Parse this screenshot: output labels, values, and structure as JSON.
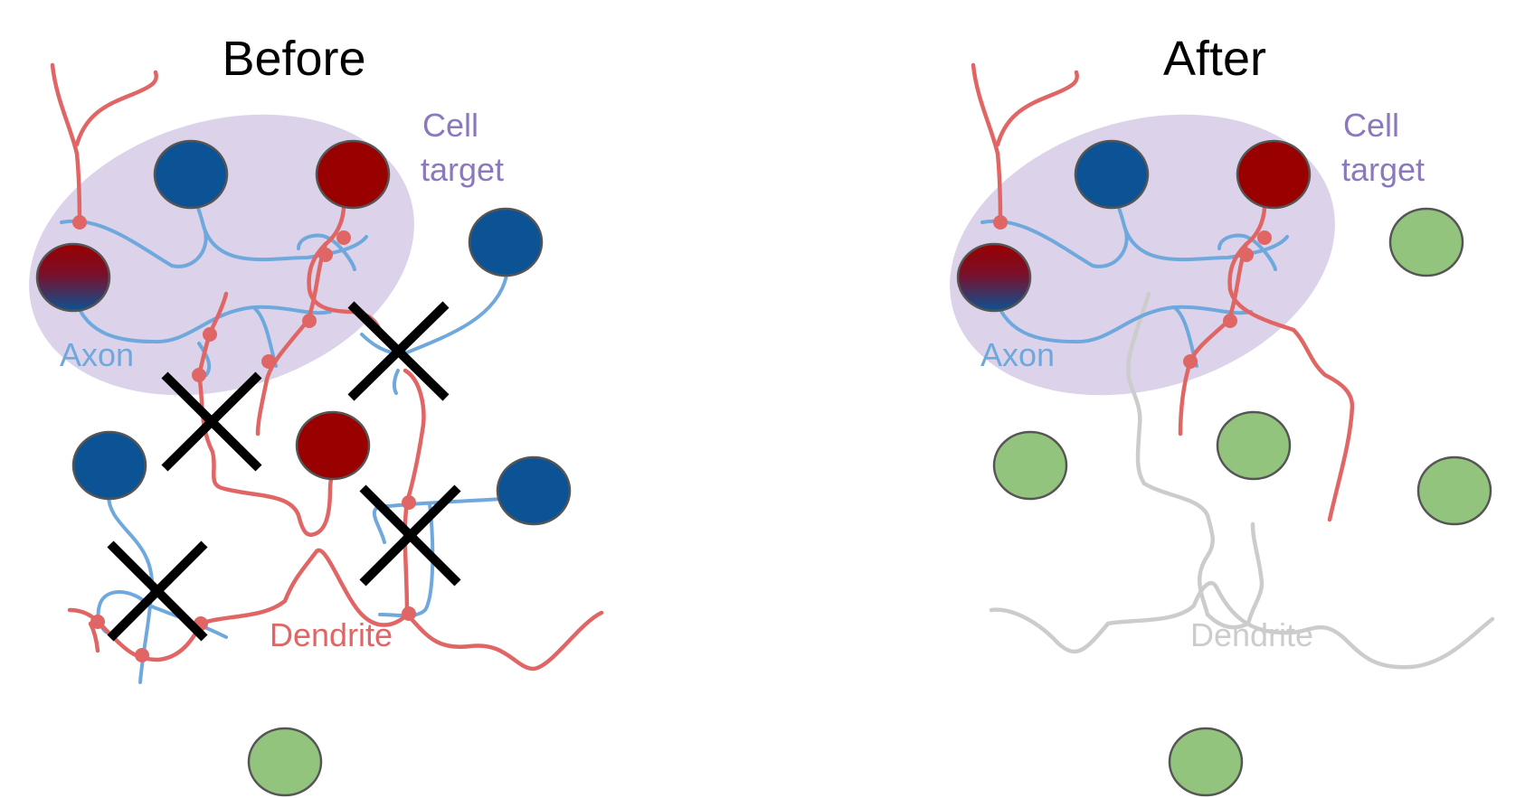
{
  "panels": {
    "before": {
      "title": "Before",
      "cell_target_line1": "Cell",
      "cell_target_line2": "target",
      "axon_label": "Axon",
      "dendrite_label": "Dendrite"
    },
    "after": {
      "title": "After",
      "cell_target_line1": "Cell",
      "cell_target_line2": "target",
      "axon_label": "Axon",
      "dendrite_label": "Dendrite"
    }
  },
  "colors": {
    "target_region": "#dcd3ea",
    "target_label": "#8b78bf",
    "axon": "#6fa8dc",
    "dendrite": "#e06666",
    "pruned": "#cccccc",
    "blue_cell": "#0b5394",
    "red_cell": "#990000",
    "green_cell": "#93c47d",
    "synapse": "#e06666",
    "cross": "#000000"
  }
}
